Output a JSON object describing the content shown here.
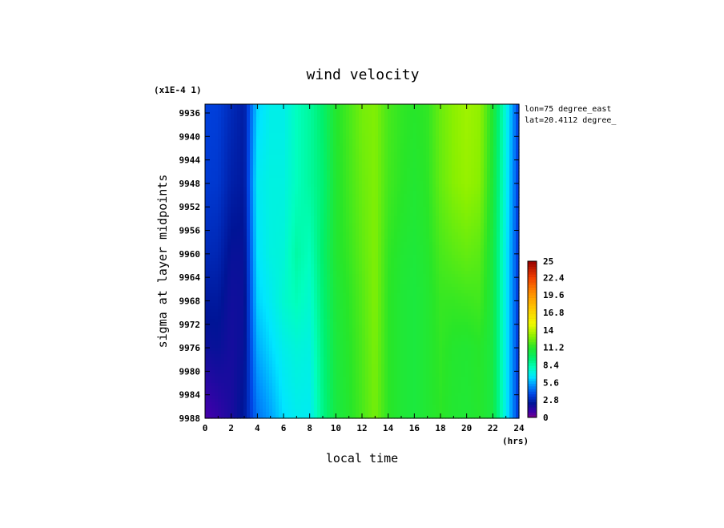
{
  "chart_data": {
    "type": "heatmap",
    "title": "wind velocity",
    "scale_label": "(x1E-4 1)",
    "xlabel": "local time",
    "xunit": "(hrs)",
    "ylabel": "sigma at layer midpoints",
    "annotations": [
      "lon=75 degree_east",
      "lat=20.4112 degree_"
    ],
    "x_ticks": [
      "0",
      "2",
      "4",
      "6",
      "8",
      "10",
      "12",
      "14",
      "16",
      "18",
      "20",
      "22",
      "24"
    ],
    "y_ticks": [
      "9936",
      "9940",
      "9944",
      "9948",
      "9952",
      "9956",
      "9960",
      "9964",
      "9968",
      "9972",
      "9976",
      "9980",
      "9984",
      "9988"
    ],
    "xlim": [
      0,
      24
    ],
    "ylim": [
      9988,
      9934.5
    ],
    "colorbar": {
      "ticks": [
        "0",
        "2.8",
        "5.6",
        "8.4",
        "11.2",
        "14",
        "16.8",
        "19.6",
        "22.4",
        "25"
      ],
      "range": [
        0,
        25
      ]
    },
    "x": [
      0,
      1,
      2,
      3,
      4,
      5,
      6,
      7,
      8,
      9,
      10,
      11,
      12,
      13,
      14,
      15,
      16,
      17,
      18,
      19,
      20,
      21,
      22,
      23,
      24
    ],
    "y": [
      9934.5,
      9948,
      9960,
      9968,
      9976,
      9988
    ],
    "z": [
      [
        3.6,
        3.5,
        2.9,
        2.5,
        6.2,
        7.0,
        7.0,
        8.0,
        8.6,
        9.6,
        11.1,
        11.8,
        12.6,
        12.8,
        11.8,
        11.4,
        11.2,
        11.4,
        12.4,
        13.0,
        13.4,
        13.1,
        11.0,
        7.3,
        3.4
      ],
      [
        3.4,
        3.3,
        2.6,
        2.4,
        6.8,
        7.2,
        7.2,
        8.0,
        8.6,
        9.4,
        11.0,
        11.7,
        12.4,
        12.8,
        11.7,
        11.3,
        11.0,
        11.3,
        12.3,
        12.9,
        13.2,
        12.9,
        10.8,
        7.1,
        3.3
      ],
      [
        2.9,
        2.8,
        2.1,
        2.1,
        6.5,
        7.2,
        7.4,
        8.5,
        8.0,
        9.6,
        11.0,
        11.5,
        12.2,
        12.8,
        11.4,
        11.0,
        10.8,
        11.1,
        11.8,
        12.1,
        12.3,
        12.1,
        10.6,
        6.9,
        3.2
      ],
      [
        2.4,
        2.4,
        1.9,
        2.0,
        6.2,
        6.8,
        7.6,
        8.1,
        7.6,
        9.4,
        10.8,
        11.3,
        12.0,
        12.8,
        11.3,
        10.9,
        10.7,
        11.0,
        11.5,
        11.5,
        11.6,
        11.7,
        10.6,
        6.9,
        3.2
      ],
      [
        2.0,
        2.1,
        1.8,
        2.1,
        5.6,
        6.3,
        7.0,
        7.4,
        7.2,
        9.2,
        10.7,
        11.2,
        11.9,
        12.7,
        11.3,
        10.9,
        10.7,
        11.0,
        11.4,
        11.1,
        11.0,
        11.2,
        10.6,
        6.9,
        3.2
      ],
      [
        0.8,
        1.2,
        1.7,
        2.4,
        4.6,
        5.4,
        6.4,
        6.9,
        6.8,
        9.0,
        10.6,
        11.1,
        11.8,
        12.6,
        11.3,
        10.9,
        10.7,
        11.0,
        11.3,
        11.0,
        10.9,
        11.1,
        10.6,
        6.9,
        3.2
      ]
    ]
  }
}
